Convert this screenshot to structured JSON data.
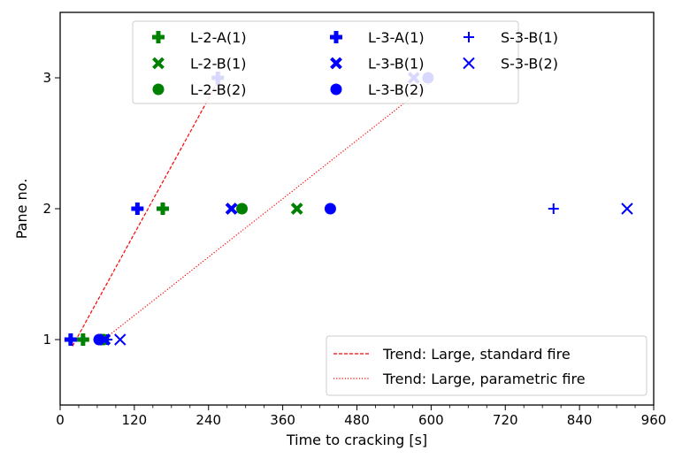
{
  "chart_data": {
    "type": "scatter",
    "xlabel": "Time to cracking [s]",
    "ylabel": "Pane no.",
    "xlim": [
      0,
      960
    ],
    "ylim": [
      0.5,
      3.5
    ],
    "xticks": [
      "0",
      "120",
      "240",
      "360",
      "480",
      "600",
      "720",
      "840",
      "960"
    ],
    "yticks": [
      "1",
      "2",
      "3"
    ],
    "grid": false,
    "series": [
      {
        "name": "L-2-A(1)",
        "color": "#008000",
        "marker": "plus-bold",
        "points": [
          [
            37,
            1
          ],
          [
            166,
            2
          ]
        ]
      },
      {
        "name": "L-2-B(1)",
        "color": "#008000",
        "marker": "x-bold",
        "points": [
          [
            383,
            2
          ]
        ]
      },
      {
        "name": "L-2-B(2)",
        "color": "#008000",
        "marker": "circle",
        "points": [
          [
            70,
            1
          ],
          [
            294,
            2
          ]
        ]
      },
      {
        "name": "L-3-A(1)",
        "color": "#0000ff",
        "marker": "plus-bold",
        "points": [
          [
            17,
            1
          ],
          [
            125,
            2
          ],
          [
            255,
            3
          ]
        ]
      },
      {
        "name": "L-3-B(1)",
        "color": "#0000ff",
        "marker": "x-bold",
        "points": [
          [
            72,
            1
          ],
          [
            277,
            2
          ],
          [
            572,
            3
          ]
        ]
      },
      {
        "name": "L-3-B(2)",
        "color": "#0000ff",
        "marker": "circle",
        "points": [
          [
            63,
            1
          ],
          [
            437,
            2
          ],
          [
            595,
            3
          ]
        ]
      },
      {
        "name": "S-3-B(1)",
        "color": "#0000ff",
        "marker": "plus",
        "points": [
          [
            76,
            1
          ],
          [
            798,
            2
          ]
        ]
      },
      {
        "name": "S-3-B(2)",
        "color": "#0000ff",
        "marker": "x",
        "points": [
          [
            97,
            1
          ],
          [
            917,
            2
          ]
        ]
      }
    ],
    "trends": [
      {
        "name": "Trend: Large, standard fire",
        "color": "#ff0000",
        "style": "dashed",
        "points": [
          [
            20,
            0.95
          ],
          [
            255,
            2.97
          ]
        ]
      },
      {
        "name": "Trend: Large, parametric fire",
        "color": "#ff0000",
        "style": "dotted",
        "points": [
          [
            65,
            0.98
          ],
          [
            595,
            2.95
          ]
        ]
      }
    ],
    "legend_placement": [
      "top-center",
      "bottom-right"
    ]
  }
}
